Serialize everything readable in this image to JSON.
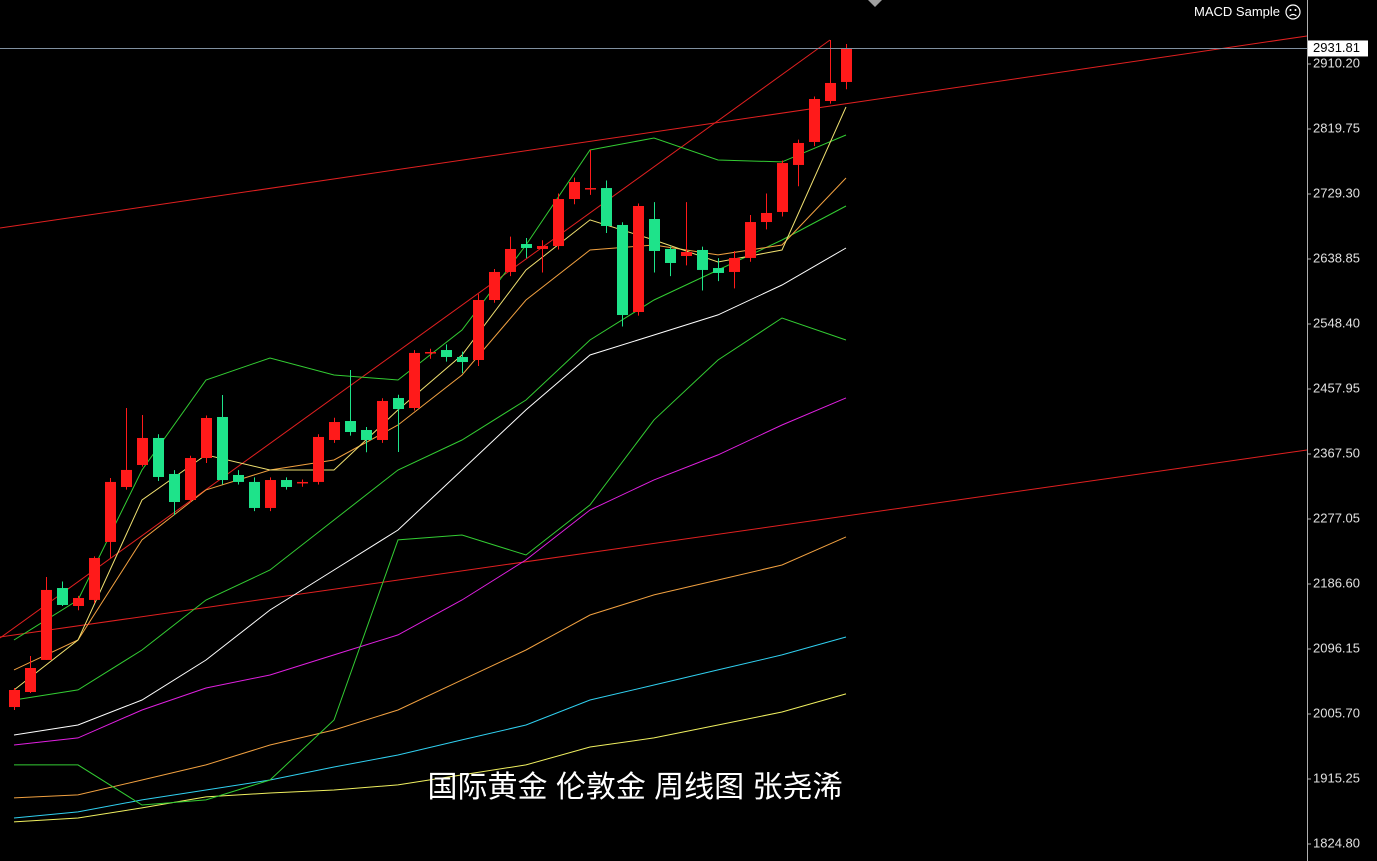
{
  "chart_data": {
    "type": "candlestick",
    "indicator_label": "MACD Sample",
    "caption": "国际黄金 伦敦金  周线图 张尧浠",
    "last_price": 2931.81,
    "up_color": "#ff1a1a",
    "down_color": "#1ee38a",
    "ylim": [
      1801.14,
      2999.26
    ],
    "yticks": [
      {
        "value": 2910.2,
        "label": "2910.20"
      },
      2819.75,
      {
        "value": 2729.3,
        "label": "2729.30"
      },
      2638.85,
      {
        "value": 2548.4,
        "label": "2548.40"
      },
      2457.95,
      {
        "value": 2367.5,
        "label": "2367.50"
      },
      2277.05,
      {
        "value": 2186.6,
        "label": "2186.60"
      },
      2096.15,
      {
        "value": 2005.7,
        "label": "2005.70"
      },
      1915.25,
      {
        "value": 1824.8,
        "label": "1824.80"
      }
    ],
    "open": [
      2015.4,
      2036.3,
      2080.9,
      2181.0,
      2156.0,
      2164.4,
      2245.1,
      2321.6,
      2352.2,
      2389.8,
      2339.7,
      2303.5,
      2361.9,
      2419.0,
      2338.3,
      2328.6,
      2292.4,
      2331.3,
      2327.2,
      2328.6,
      2387.0,
      2413.4,
      2400.9,
      2387.0,
      2445.4,
      2431.5,
      2508.1,
      2512.2,
      2502.5,
      2498.3,
      2581.8,
      2620.8,
      2659.7,
      2652.8,
      2656.9,
      2722.3,
      2736.3,
      2737.6,
      2686.2,
      2565.1,
      2694.5,
      2652.8,
      2643.0,
      2651.4,
      2626.3,
      2620.8,
      2640.3,
      2690.3,
      2704.3,
      2769.7,
      2801.7,
      2858.7,
      2885.2
    ],
    "high": [
      2041.9,
      2086.4,
      2196.4,
      2190.0,
      2170.0,
      2225.0,
      2334.1,
      2431.5,
      2421.8,
      2395.0,
      2345.0,
      2365.0,
      2421.0,
      2449.6,
      2345.0,
      2335.0,
      2335.0,
      2335.0,
      2332.0,
      2395.0,
      2418.0,
      2484.4,
      2405.0,
      2445.0,
      2450.0,
      2512.0,
      2514.0,
      2520.0,
      2510.0,
      2590.0,
      2625.0,
      2670.0,
      2668.0,
      2665.0,
      2730.0,
      2752.0,
      2790.5,
      2748.0,
      2690.0,
      2716.0,
      2718.0,
      2656.0,
      2718.0,
      2656.0,
      2640.0,
      2650.0,
      2700.0,
      2730.0,
      2776.0,
      2805.0,
      2865.0,
      2943.6,
      2938.0
    ],
    "low": [
      2011.3,
      2035.0,
      2080.9,
      2156.0,
      2150.0,
      2160.0,
      2222.8,
      2318.0,
      2350.0,
      2330.0,
      2282.6,
      2300.0,
      2355.0,
      2325.0,
      2325.0,
      2288.0,
      2288.0,
      2318.0,
      2322.0,
      2325.0,
      2383.0,
      2393.0,
      2370.0,
      2383.0,
      2370.3,
      2428.0,
      2500.0,
      2496.0,
      2480.0,
      2490.0,
      2578.0,
      2615.0,
      2640.0,
      2620.0,
      2652.0,
      2715.0,
      2728.0,
      2675.0,
      2545.0,
      2560.0,
      2620.0,
      2615.0,
      2630.0,
      2595.0,
      2608.0,
      2598.0,
      2635.0,
      2680.0,
      2698.0,
      2740.0,
      2796.0,
      2855.0,
      2875.0
    ],
    "close": [
      2039.1,
      2069.7,
      2178.3,
      2157.4,
      2167.1,
      2222.8,
      2328.6,
      2345.3,
      2389.8,
      2335.5,
      2300.7,
      2361.9,
      2417.6,
      2331.3,
      2328.6,
      2292.4,
      2331.3,
      2321.6,
      2328.6,
      2391.2,
      2412.0,
      2398.1,
      2387.0,
      2441.3,
      2430.1,
      2508.1,
      2509.4,
      2502.5,
      2495.5,
      2581.8,
      2620.8,
      2652.8,
      2654.2,
      2656.9,
      2722.3,
      2746.0,
      2737.6,
      2684.8,
      2560.9,
      2712.6,
      2650.0,
      2633.3,
      2648.6,
      2623.6,
      2619.4,
      2640.3,
      2690.3,
      2702.9,
      2772.4,
      2800.3,
      2861.5,
      2883.8,
      2931.81
    ],
    "series": [
      {
        "color": "#ffffff",
        "x": [
          0,
          4,
          8,
          12,
          16,
          20,
          24,
          28,
          32,
          36,
          40,
          44,
          48,
          52
        ],
        "values": [
          1976.5,
          1990.4,
          2025.2,
          2080.9,
          2150.4,
          2206.1,
          2261.8,
          2345.3,
          2428.8,
          2505.3,
          2533.1,
          2561.0,
          2602.7,
          2654.2
        ]
      },
      {
        "color": "#e020e0",
        "x": [
          0,
          4,
          8,
          12,
          16,
          20,
          24,
          28,
          32,
          36,
          40,
          44,
          48,
          52
        ],
        "values": [
          1962.6,
          1972.4,
          2011.3,
          2041.9,
          2060.0,
          2087.9,
          2115.7,
          2164.4,
          2220.1,
          2289.6,
          2331.4,
          2366.2,
          2407.9,
          2445.5
        ]
      },
      {
        "color": "#f0a040",
        "x": [
          0,
          4,
          8,
          12,
          16,
          20,
          24,
          28,
          32,
          36,
          40,
          44,
          48,
          52
        ],
        "values": [
          1888.9,
          1893.1,
          1913.9,
          1934.8,
          1962.6,
          1983.5,
          2011.3,
          2053.1,
          2094.8,
          2143.5,
          2171.4,
          2192.2,
          2213.1,
          2252.1
        ]
      },
      {
        "color": "#30d0f0",
        "x": [
          0,
          4,
          8,
          12,
          16,
          20,
          24,
          28,
          32,
          36,
          40,
          44,
          48,
          52
        ],
        "values": [
          1861.0,
          1869.4,
          1886.1,
          1900.0,
          1913.9,
          1932.0,
          1948.7,
          1969.6,
          1990.4,
          2025.2,
          2046.1,
          2067.0,
          2087.9,
          2112.9
        ]
      },
      {
        "color": "#f0f060",
        "x": [
          0,
          4,
          8,
          12,
          16,
          20,
          24,
          28,
          32,
          36,
          40,
          44,
          48,
          52
        ],
        "values": [
          1855.5,
          1861.0,
          1875.0,
          1890.3,
          1895.8,
          1900.0,
          1907.0,
          1920.9,
          1934.8,
          1959.8,
          1972.4,
          1990.4,
          2008.5,
          2033.6
        ]
      },
      {
        "color": "#33cc33",
        "x": [
          0,
          4,
          8,
          12,
          16,
          20,
          24,
          28,
          32,
          36,
          40,
          44,
          48,
          52
        ],
        "values": [
          2108.7,
          2164.4,
          2345.3,
          2470.5,
          2501.1,
          2477.5,
          2470.5,
          2540.1,
          2658.4,
          2790.5,
          2807.2,
          2776.6,
          2773.9,
          2811.4
        ]
      },
      {
        "color": "#33cc33",
        "x": [
          0,
          4,
          8,
          12,
          16,
          20,
          24,
          28,
          32,
          36,
          40,
          44,
          48,
          52
        ],
        "values": [
          1934.8,
          1934.8,
          1879.1,
          1886.1,
          1913.9,
          1997.4,
          2247.9,
          2254.8,
          2227.0,
          2296.6,
          2414.9,
          2498.3,
          2556.8,
          2526.2
        ]
      },
      {
        "color": "#33cc33",
        "x": [
          0,
          4,
          8,
          12,
          16,
          20,
          24,
          28,
          32,
          36,
          40,
          44,
          48,
          52
        ],
        "values": [
          2025.2,
          2039.2,
          2094.8,
          2164.4,
          2206.1,
          2275.7,
          2345.3,
          2387.0,
          2442.7,
          2526.2,
          2581.8,
          2623.6,
          2665.3,
          2712.6
        ]
      },
      {
        "color": "#f0a040",
        "x": [
          0,
          4,
          8,
          12,
          16,
          20,
          24,
          28,
          32,
          36,
          40,
          44,
          48,
          52
        ],
        "values": [
          2067.0,
          2108.7,
          2247.9,
          2317.5,
          2345.3,
          2359.2,
          2407.9,
          2477.5,
          2581.8,
          2651.4,
          2658.4,
          2644.5,
          2658.4,
          2751.6
        ]
      },
      {
        "color": "#f0e070",
        "x": [
          0,
          4,
          8,
          12,
          16,
          20,
          24,
          28,
          32,
          36,
          40,
          44,
          48,
          52
        ],
        "values": [
          2039.1,
          2108.7,
          2303.5,
          2366.2,
          2345.3,
          2345.3,
          2428.8,
          2505.3,
          2623.6,
          2693.2,
          2665.3,
          2634.7,
          2651.4,
          2850.4
        ]
      }
    ]
  }
}
